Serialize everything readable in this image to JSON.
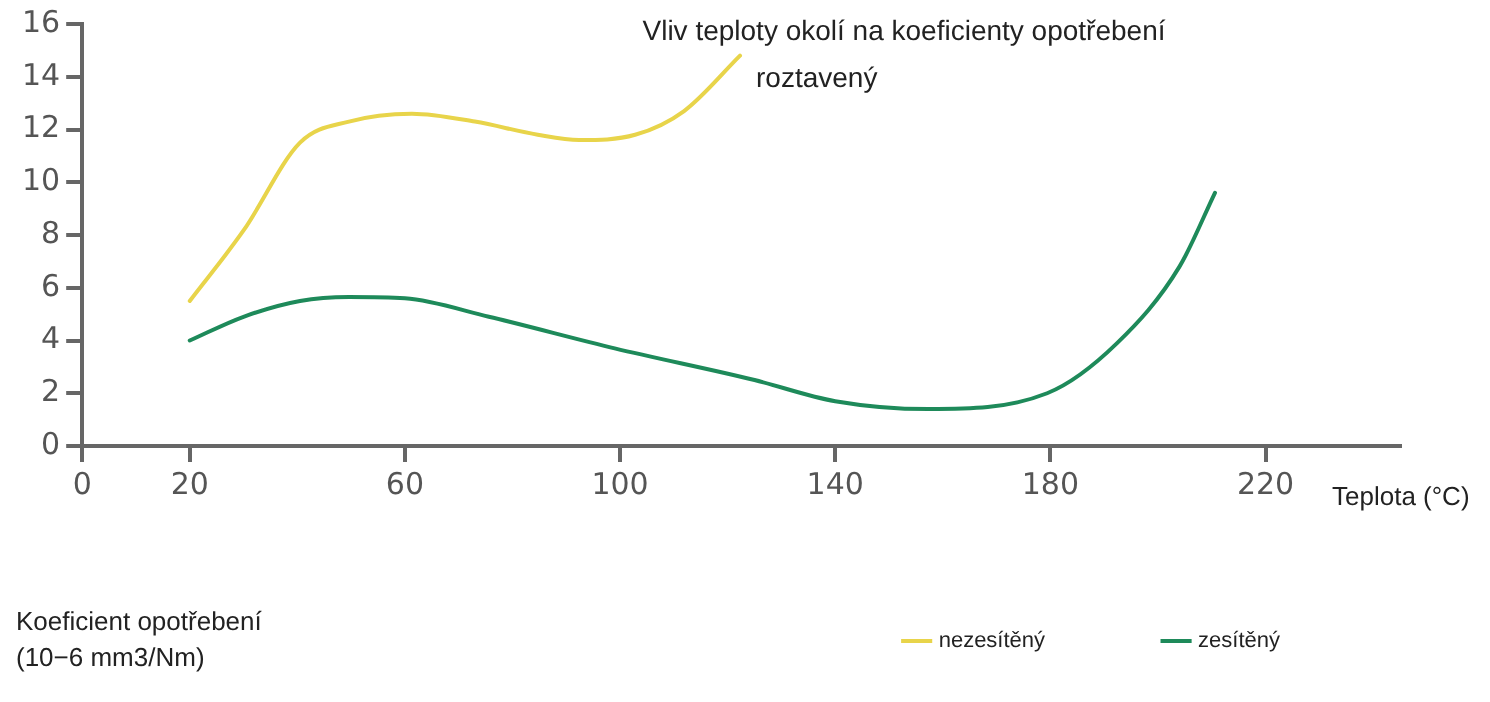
{
  "chart_data": {
    "type": "line",
    "title": "Vliv teploty okolí na koeficienty opotřebení",
    "xlabel": "Teplota (°C)",
    "ylabel": "Koeficient opotřebení\n(10−6 mm3/Nm)",
    "xlim": [
      0,
      245
    ],
    "xticks": [
      0,
      20,
      60,
      100,
      140,
      180,
      220
    ],
    "ylim": [
      0,
      16
    ],
    "yticks": [
      0,
      2,
      4,
      6,
      8,
      10,
      12,
      14,
      16
    ],
    "grid": false,
    "legend": "bottom",
    "marker": "none",
    "line_style": "solid",
    "annotations": [
      {
        "text": "roztavený",
        "x": 122.3,
        "y": 14.8
      }
    ],
    "series": [
      {
        "name": "nezesítěný",
        "color": "#e8d44a",
        "x": [
          20,
          30.1,
          40.5,
          49.6,
          61.3,
          73,
          84.7,
          92.4,
          102.8,
          111.9,
          122.3
        ],
        "values": [
          5.5,
          8.2,
          11.5,
          12.3,
          12.6,
          12.3,
          11.8,
          11.6,
          11.8,
          12.7,
          14.8
        ]
      },
      {
        "name": "zesítěný",
        "color": "#1e8a5a",
        "x": [
          20,
          30,
          40.5,
          49.6,
          60,
          75.6,
          99,
          125,
          140,
          157.3,
          179.4,
          192.4,
          204,
          210.6
        ],
        "values": [
          4.0,
          4.9,
          5.5,
          5.65,
          5.6,
          4.9,
          3.7,
          2.5,
          1.7,
          1.4,
          2.0,
          3.9,
          6.8,
          9.6
        ]
      }
    ]
  }
}
